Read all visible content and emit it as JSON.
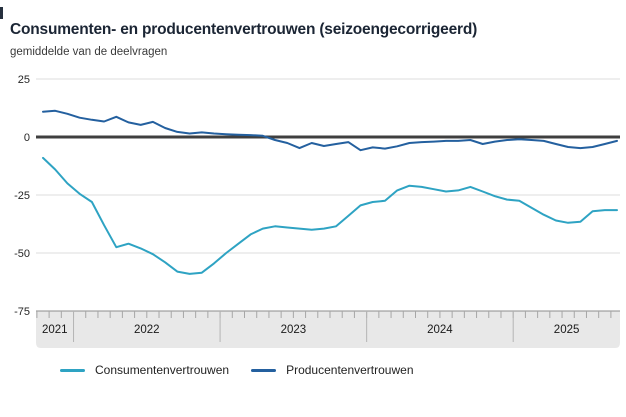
{
  "header": {
    "title": "Consumenten- en producentenvertrouwen (seizoengecorrigeerd)",
    "subtitle": "gemiddelde van de deelvragen"
  },
  "chart_data": {
    "type": "line",
    "title": "Consumenten- en producentenvertrouwen (seizoengecorrigeerd)",
    "subtitle": "gemiddelde van de deelvragen",
    "x_unit": "month",
    "x_start": "2021-10",
    "x_end": "2025-09",
    "x_year_labels": [
      "2021",
      "2022",
      "2023",
      "2024",
      "2025"
    ],
    "ylim": [
      -75,
      25
    ],
    "yticks": [
      25,
      0,
      -25,
      -50,
      -75
    ],
    "grid": true,
    "zero_line": true,
    "legend_position": "bottom",
    "colors": {
      "consumer": "#2ea3c3",
      "producer": "#24609f",
      "zero_line": "#3f3f3f",
      "gridline": "#dcdcdc",
      "axis_band": "#e8e8e8",
      "axis_edge": "#8c8c8c",
      "tick": "#a6a6a6",
      "year_separator": "#b4b4b4"
    },
    "series": [
      {
        "name": "Consumentenvertrouwen",
        "color": "#2ea3c3",
        "values": [
          -9,
          -14,
          -20,
          -24.5,
          -28,
          -38,
          -47.5,
          -46,
          -48,
          -50.5,
          -54,
          -58,
          -59,
          -58.5,
          -54.5,
          -50,
          -46,
          -42,
          -39.5,
          -38.5,
          -39,
          -39.5,
          -40,
          -39.5,
          -38.5,
          -34,
          -29.5,
          -28,
          -27.5,
          -23,
          -21,
          -21.5,
          -22.5,
          -23.5,
          -23,
          -21.5,
          -23.5,
          -25.5,
          -27,
          -27.5,
          -30.5,
          -33.5,
          -36,
          -37,
          -36.5,
          -32,
          -31.5,
          -31.5
        ]
      },
      {
        "name": "Producentenvertrouwen",
        "color": "#24609f",
        "values": [
          10.9,
          11.3,
          10,
          8.3,
          7.4,
          6.7,
          8.7,
          6.3,
          5.2,
          6.5,
          3.9,
          2.2,
          1.5,
          2,
          1.5,
          1.2,
          1,
          0.8,
          0.5,
          -1.3,
          -2.6,
          -4.8,
          -2.6,
          -3.9,
          -3,
          -2.2,
          -5.7,
          -4.5,
          -5,
          -4,
          -2.6,
          -2.2,
          -2,
          -1.7,
          -1.7,
          -1.3,
          -3,
          -2,
          -1.3,
          -1,
          -1.3,
          -1.7,
          -3,
          -4.3,
          -4.8,
          -4.3,
          -3,
          -1.7
        ]
      }
    ]
  },
  "legend": {
    "items": [
      {
        "label": "Consumentenvertrouwen",
        "color": "#2ea3c3"
      },
      {
        "label": "Producentenvertrouwen",
        "color": "#24609f"
      }
    ]
  }
}
